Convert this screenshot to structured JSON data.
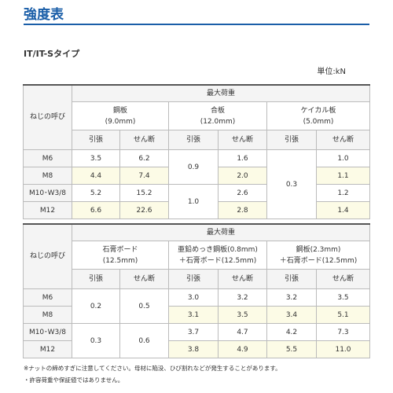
{
  "header": {
    "title": "強度表",
    "subtitle": "IT/IT-Sタイプ",
    "unit": "単位:kN"
  },
  "tables": [
    {
      "caption": "最大荷重",
      "row_header": "ねじの呼び",
      "groups": [
        [
          "鋼板",
          "(9.0mm)"
        ],
        [
          "合板",
          "(12.0mm)"
        ],
        [
          "ケイカル板",
          "(5.0mm)"
        ]
      ],
      "subheaders": [
        "引張",
        "せん断",
        "引張",
        "せん断",
        "引張",
        "せん断"
      ],
      "rows": [
        [
          "M6",
          "3.5",
          "6.2",
          "0.9",
          "1.6",
          "0.3",
          "1.0"
        ],
        [
          "M8",
          "4.4",
          "7.4",
          "2.0",
          "1.1"
        ],
        [
          "M10･W3/8",
          "5.2",
          "15.2",
          "1.0",
          "2.6",
          "1.2"
        ],
        [
          "M12",
          "6.6",
          "22.6",
          "2.8",
          "1.4"
        ]
      ]
    },
    {
      "caption": "最大荷重",
      "row_header": "ねじの呼び",
      "groups": [
        [
          "石膏ボード",
          "(12.5mm)"
        ],
        [
          "亜鉛めっき鋼板(0.8mm)",
          "＋石膏ボード(12.5mm)"
        ],
        [
          "鋼板(2.3mm)",
          "＋石膏ボード(12.5mm)"
        ]
      ],
      "subheaders": [
        "引張",
        "せん断",
        "引張",
        "せん断",
        "引張",
        "せん断"
      ],
      "rows": [
        [
          "M6",
          "0.2",
          "0.5",
          "3.0",
          "3.2",
          "3.2",
          "3.5"
        ],
        [
          "M8",
          "3.1",
          "3.5",
          "3.4",
          "5.1"
        ],
        [
          "M10･W3/8",
          "0.3",
          "0.6",
          "3.7",
          "4.7",
          "4.2",
          "7.3"
        ],
        [
          "M12",
          "3.8",
          "4.9",
          "5.5",
          "11.0"
        ]
      ]
    }
  ],
  "notes": [
    "※ナットの締めすぎに注意してください。母材に陥没、ひび割れなどが発生することがあります。",
    "・許容荷重や保証値ではありません。"
  ]
}
